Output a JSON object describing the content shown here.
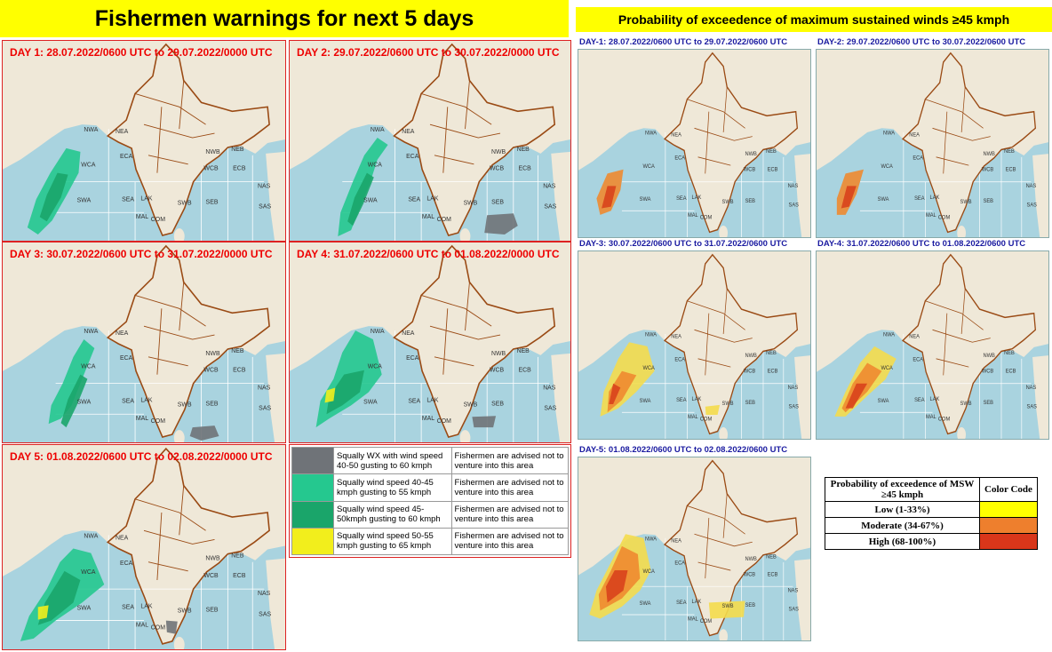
{
  "left": {
    "title": "Fishermen warnings for next 5 days",
    "days": [
      "DAY 1: 28.07.2022/0600 UTC to 29.07.2022/0000 UTC",
      "DAY 2: 29.07.2022/0600 UTC to 30.07.2022/0000 UTC",
      "DAY 3: 30.07.2022/0600 UTC to 31.07.2022/0000 UTC",
      "DAY 4: 31.07.2022/0600 UTC to 01.08.2022/0000 UTC",
      "DAY 5: 01.08.2022/0600 UTC to 02.08.2022/0000 UTC"
    ],
    "legend": [
      [
        "Squally WX with wind speed 40-50 gusting to 60 kmph",
        "Fishermen are advised not to venture into this area"
      ],
      [
        "Squally wind speed 40-45 kmph gusting to 55 kmph",
        "Fishermen are advised not to venture into this area"
      ],
      [
        "Squally wind speed 45-50kmph gusting to 60 kmph",
        "Fishermen are advised not to venture into this area"
      ],
      [
        "Squally wind speed 50-55 kmph gusting to 65 kmph",
        "Fishermen are advised not to venture into this area"
      ]
    ]
  },
  "right": {
    "title": "Probability of exceedence of maximum sustained winds ≥45 kmph",
    "days": [
      "DAY-1: 28.07.2022/0600 UTC to 29.07.2022/0600 UTC",
      "DAY-2: 29.07.2022/0600 UTC to 30.07.2022/0600 UTC",
      "DAY-3: 30.07.2022/0600 UTC to 31.07.2022/0600 UTC",
      "DAY-4: 31.07.2022/0600 UTC to 01.08.2022/0600 UTC",
      "DAY-5: 01.08.2022/0600 UTC to 02.08.2022/0600 UTC"
    ],
    "table": {
      "header": [
        "Probability of exceedence of MSW ≥45 kmph",
        "Color Code"
      ],
      "rows": [
        "Low (1-33%)",
        "Moderate (34-67%)",
        "High (68-100%)"
      ]
    }
  },
  "regions": [
    "NWA",
    "NEA",
    "WCA",
    "ECA",
    "SWA",
    "SEA",
    "LAK",
    "MAL",
    "COM",
    "SWB",
    "SEB",
    "WCB",
    "NWB",
    "NEB",
    "ECB",
    "NAS",
    "SAS"
  ]
}
